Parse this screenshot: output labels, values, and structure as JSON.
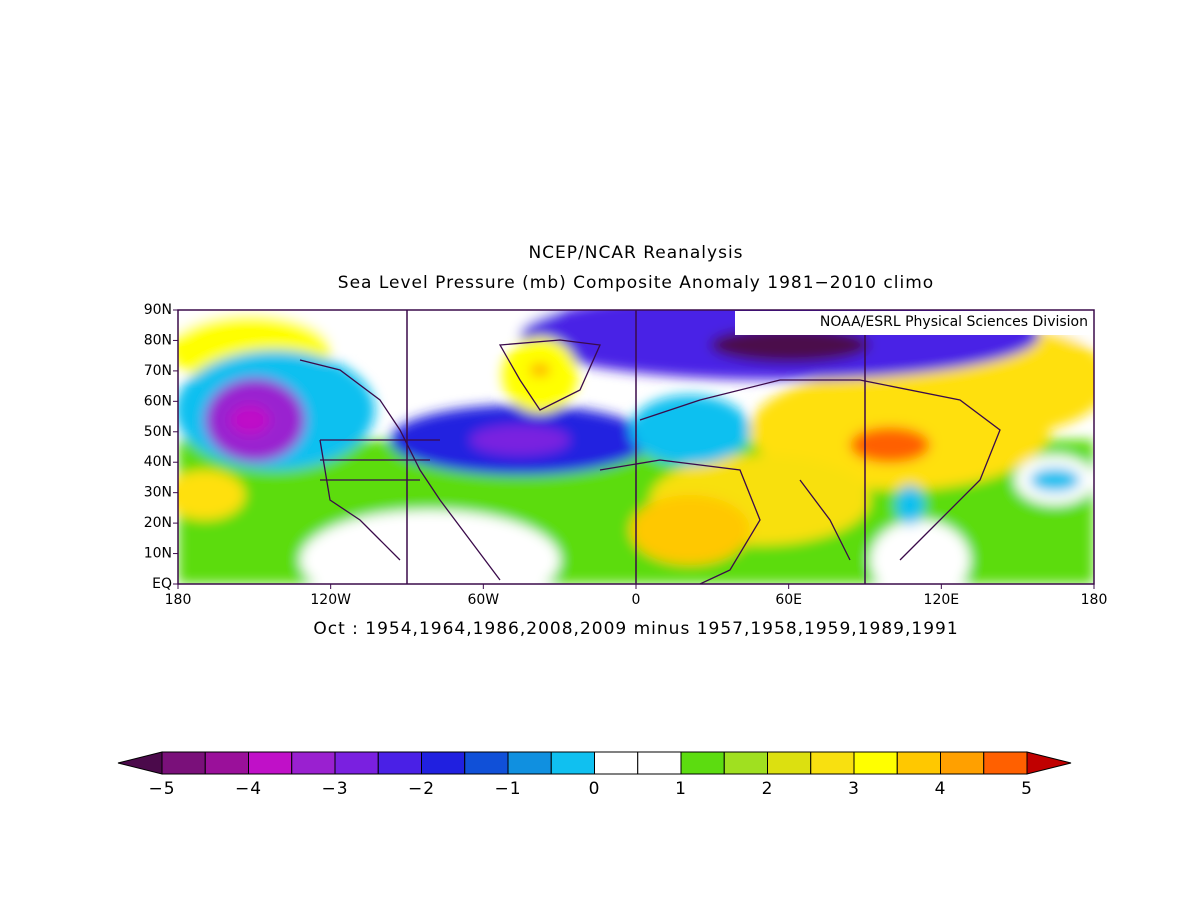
{
  "title": "NCEP/NCAR Reanalysis",
  "subtitle": "Sea Level Pressure (mb) Composite Anomaly 1981−2010 climo",
  "credit": "NOAA/ESRL Physical Sciences Division",
  "caption": "Oct : 1954,1964,1986,2008,2009 minus 1957,1958,1959,1989,1991",
  "map": {
    "lonlim": [
      -180,
      180
    ],
    "latlim": [
      0,
      90
    ],
    "lat_ticks": [
      {
        "value": 90,
        "label": "90N"
      },
      {
        "value": 80,
        "label": "80N"
      },
      {
        "value": 70,
        "label": "70N"
      },
      {
        "value": 60,
        "label": "60N"
      },
      {
        "value": 50,
        "label": "50N"
      },
      {
        "value": 40,
        "label": "40N"
      },
      {
        "value": 30,
        "label": "30N"
      },
      {
        "value": 20,
        "label": "20N"
      },
      {
        "value": 10,
        "label": "10N"
      },
      {
        "value": 0,
        "label": "EQ"
      }
    ],
    "lon_ticks": [
      {
        "value": -180,
        "label": "180"
      },
      {
        "value": -120,
        "label": "120W"
      },
      {
        "value": -60,
        "label": "60W"
      },
      0,
      {
        "value": 60,
        "label": "60E"
      },
      {
        "value": 120,
        "label": "120E"
      },
      180
    ],
    "meridians": [
      -90,
      0,
      90
    ],
    "frame_color": "#3a0a4a"
  },
  "colorbar": {
    "under_color": "#4b0a4b",
    "over_color": "#c00000",
    "colors": [
      "#7a107a",
      "#9a109a",
      "#c010c8",
      "#9a20d0",
      "#7a20e0",
      "#4a20e6",
      "#2020e0",
      "#1050d8",
      "#1090e0",
      "#10c0f0",
      "#ffffff",
      "#ffffff",
      "#5cdc10",
      "#a0e020",
      "#dce010",
      "#f8e010",
      "#ffff00",
      "#ffc800",
      "#ffa000",
      "#ff6000"
    ],
    "ticks": [
      {
        "value": -5,
        "label": "−5"
      },
      {
        "value": -4,
        "label": "−4"
      },
      {
        "value": -3,
        "label": "−3"
      },
      {
        "value": -2,
        "label": "−2"
      },
      {
        "value": -1,
        "label": "−1"
      },
      0,
      1,
      2,
      3,
      4,
      5
    ]
  }
}
